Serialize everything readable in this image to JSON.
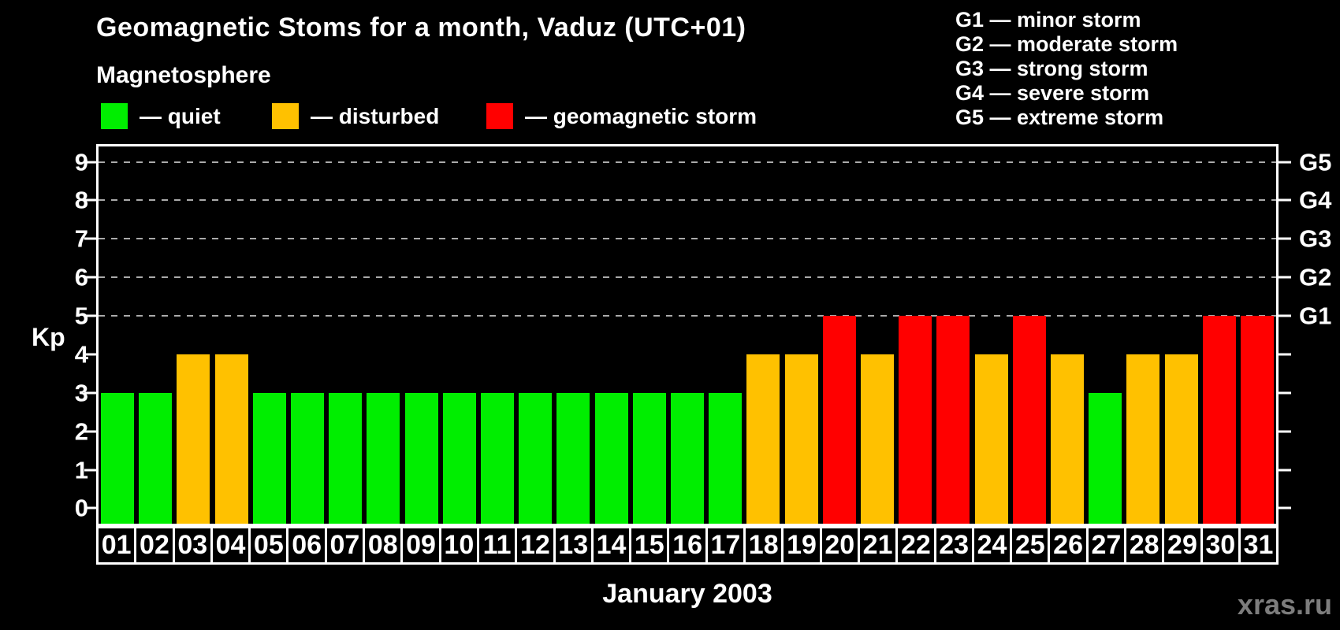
{
  "header": {
    "title": "Geomagnetic Stoms for a month, Vaduz (UTC+01)",
    "legend_title": "Magnetosphere"
  },
  "legend": {
    "items": [
      {
        "key": "quiet",
        "label": "— quiet",
        "color": "#00ee00"
      },
      {
        "key": "disturbed",
        "label": "— disturbed",
        "color": "#ffc100"
      },
      {
        "key": "storm",
        "label": "— geomagnetic storm",
        "color": "#ff0000"
      }
    ]
  },
  "g_legend": {
    "lines": [
      "G1 — minor storm",
      "G2 — moderate storm",
      "G3 — strong storm",
      "G4 — severe storm",
      "G5 — extreme storm"
    ]
  },
  "axes": {
    "y_label": "Kp",
    "x_label": "January 2003"
  },
  "watermark": "xras.ru",
  "chart_data": {
    "type": "bar",
    "title": "Geomagnetic Stoms for a month, Vaduz (UTC+01)",
    "xlabel": "January 2003",
    "ylabel": "Kp",
    "ylim": [
      0,
      9
    ],
    "yticks": [
      0,
      1,
      2,
      3,
      4,
      5,
      6,
      7,
      8,
      9
    ],
    "gridlines": [
      5,
      6,
      7,
      8,
      9
    ],
    "grid_style": "dashed horizontal lines at G-storm levels only",
    "legend_position": "top-left",
    "categories": [
      "01",
      "02",
      "03",
      "04",
      "05",
      "06",
      "07",
      "08",
      "09",
      "10",
      "11",
      "12",
      "13",
      "14",
      "15",
      "16",
      "17",
      "18",
      "19",
      "20",
      "21",
      "22",
      "23",
      "24",
      "25",
      "26",
      "27",
      "28",
      "29",
      "30",
      "31"
    ],
    "values": [
      3,
      3,
      4,
      4,
      3,
      3,
      3,
      3,
      3,
      3,
      3,
      3,
      3,
      3,
      3,
      3,
      3,
      4,
      4,
      5,
      4,
      5,
      5,
      4,
      5,
      4,
      3,
      4,
      4,
      5,
      5
    ],
    "statuses": [
      "quiet",
      "quiet",
      "disturbed",
      "disturbed",
      "quiet",
      "quiet",
      "quiet",
      "quiet",
      "quiet",
      "quiet",
      "quiet",
      "quiet",
      "quiet",
      "quiet",
      "quiet",
      "quiet",
      "quiet",
      "disturbed",
      "disturbed",
      "storm",
      "disturbed",
      "storm",
      "storm",
      "disturbed",
      "storm",
      "disturbed",
      "quiet",
      "disturbed",
      "disturbed",
      "storm",
      "storm"
    ],
    "right_axis": [
      {
        "label": "G1",
        "value": 5
      },
      {
        "label": "G2",
        "value": 6
      },
      {
        "label": "G3",
        "value": 7
      },
      {
        "label": "G4",
        "value": 8
      },
      {
        "label": "G5",
        "value": 9
      }
    ]
  }
}
